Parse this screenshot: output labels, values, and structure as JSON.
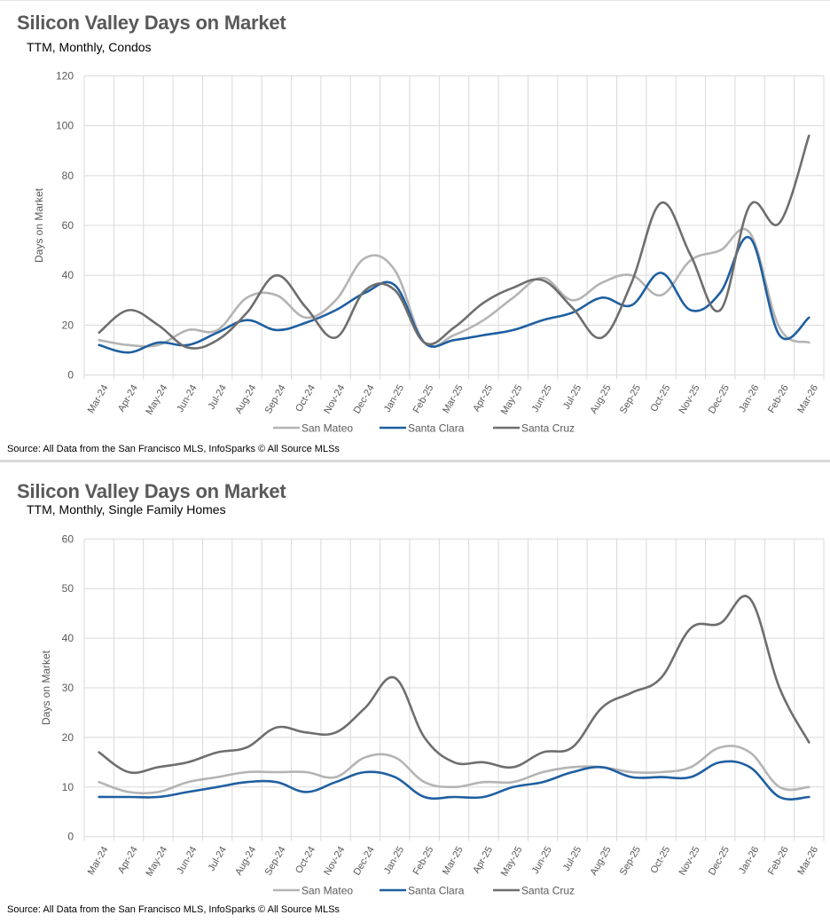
{
  "charts": [
    {
      "title": "Silicon Valley Days on Market",
      "subtitle": "TTM, Monthly, Condos",
      "source": "Source: All Data from the San Francisco MLS, InfoSparks © All Source MLSs"
    },
    {
      "title": "Silicon Valley Days on Market",
      "subtitle": "TTM, Monthly, Single Family Homes",
      "source": "Source: All Data from the San Francisco MLS, InfoSparks © All Source MLSs"
    }
  ],
  "chart_data": [
    {
      "type": "line",
      "title": "Silicon Valley Days on Market",
      "subtitle": "TTM, Monthly, Condos",
      "xlabel": "",
      "ylabel": "Days on Market",
      "ylim": [
        0,
        120
      ],
      "yticks": [
        0,
        20,
        40,
        60,
        80,
        100,
        120
      ],
      "grid": true,
      "smooth": true,
      "legend_position": "bottom",
      "categories": [
        "Mar-24",
        "Apr-24",
        "May-24",
        "Jun-24",
        "Jul-24",
        "Aug-24",
        "Sep-24",
        "Oct-24",
        "Nov-24",
        "Dec-24",
        "Jan-25",
        "Feb-25",
        "Mar-25",
        "Apr-25",
        "May-25",
        "Jun-25",
        "Jul-25",
        "Aug-25",
        "Sep-25",
        "Oct-25",
        "Nov-25",
        "Dec-25",
        "Jan-26",
        "Feb-26",
        "Mar-26"
      ],
      "series": [
        {
          "name": "San Mateo",
          "color": "#b4b4b4",
          "values": [
            14,
            12,
            12,
            18,
            18,
            31,
            32,
            23,
            30,
            47,
            42,
            13,
            16,
            22,
            31,
            39,
            30,
            37,
            40,
            32,
            46,
            50,
            57,
            19,
            13
          ]
        },
        {
          "name": "Santa Clara",
          "color": "#1f5fa0",
          "values": [
            12,
            9,
            13,
            12,
            17,
            22,
            18,
            21,
            26,
            33,
            36,
            13,
            14,
            16,
            18,
            22,
            25,
            31,
            28,
            41,
            26,
            33,
            55,
            16,
            23
          ]
        },
        {
          "name": "Santa Cruz",
          "color": "#6e6e6e",
          "values": [
            17,
            26,
            20,
            11,
            14,
            25,
            40,
            27,
            15,
            34,
            34,
            13,
            19,
            29,
            35,
            38,
            27,
            15,
            37,
            69,
            48,
            26,
            68,
            61,
            96
          ]
        }
      ]
    },
    {
      "type": "line",
      "title": "Silicon Valley Days on Market",
      "subtitle": "TTM, Monthly, Single Family Homes",
      "xlabel": "",
      "ylabel": "Days on Market",
      "ylim": [
        0,
        60
      ],
      "yticks": [
        0,
        10,
        20,
        30,
        40,
        50,
        60
      ],
      "grid": true,
      "smooth": true,
      "legend_position": "bottom",
      "categories": [
        "Mar-24",
        "Apr-24",
        "May-24",
        "Jun-24",
        "Jul-24",
        "Aug-24",
        "Sep-24",
        "Oct-24",
        "Nov-24",
        "Dec-24",
        "Jan-25",
        "Feb-25",
        "Mar-25",
        "Apr-25",
        "May-25",
        "Jun-25",
        "Jul-25",
        "Aug-25",
        "Sep-25",
        "Oct-25",
        "Nov-25",
        "Dec-25",
        "Jan-26",
        "Feb-26",
        "Mar-26"
      ],
      "series": [
        {
          "name": "San Mateo",
          "color": "#b4b4b4",
          "values": [
            11,
            9,
            9,
            11,
            12,
            13,
            13,
            13,
            12,
            16,
            16,
            11,
            10,
            11,
            11,
            13,
            14,
            14,
            13,
            13,
            14,
            18,
            17,
            10,
            10
          ]
        },
        {
          "name": "Santa Clara",
          "color": "#1f5fa0",
          "values": [
            8,
            8,
            8,
            9,
            10,
            11,
            11,
            9,
            11,
            13,
            12,
            8,
            8,
            8,
            10,
            11,
            13,
            14,
            12,
            12,
            12,
            15,
            14,
            8,
            8
          ]
        },
        {
          "name": "Santa Cruz",
          "color": "#6e6e6e",
          "values": [
            17,
            13,
            14,
            15,
            17,
            18,
            22,
            21,
            21,
            26,
            32,
            20,
            15,
            15,
            14,
            17,
            18,
            26,
            29,
            32,
            42,
            43,
            48,
            30,
            19
          ]
        }
      ]
    }
  ]
}
